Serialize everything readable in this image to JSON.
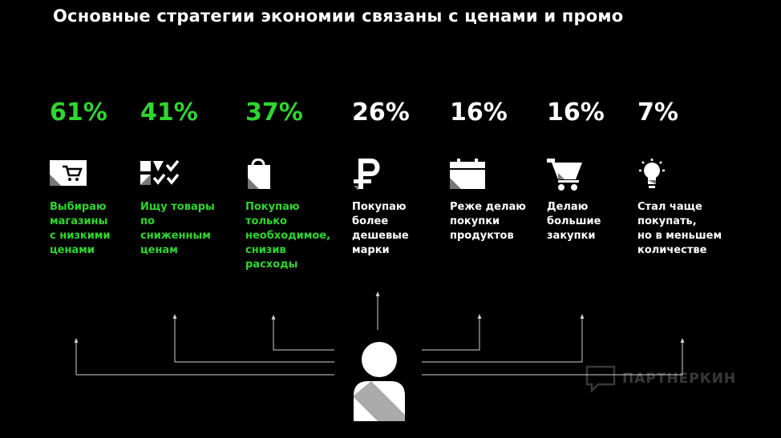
{
  "title": "Основные стратегии экономии связаны с ценами и промо",
  "accent_color": "#2fd62f",
  "items": [
    {
      "percent": "61%",
      "label": "Выбираю\nмагазины\nс низкими\nценами",
      "icon": "store-cart-icon",
      "highlight": true
    },
    {
      "percent": "41%",
      "label": "Ищу товары\nпо\nсниженным\nценам",
      "icon": "discount-grid-icon",
      "highlight": true
    },
    {
      "percent": "37%",
      "label": "Покупаю\nтолько\nнеобходимое,\nснизив\nрасходы",
      "icon": "shopping-bag-icon",
      "highlight": true
    },
    {
      "percent": "26%",
      "label": "Покупаю\nболее\nдешевые\nмарки",
      "icon": "ruble-icon",
      "highlight": false
    },
    {
      "percent": "16%",
      "label": "Реже делаю\nпокупки\nпродуктов",
      "icon": "calendar-icon",
      "highlight": false
    },
    {
      "percent": "16%",
      "label": "Делаю\nбольшие\nзакупки",
      "icon": "shopping-cart-icon",
      "highlight": false
    },
    {
      "percent": "7%",
      "label": "Стал чаще\nпокупать,\nно в меньшем\nколичестве",
      "icon": "lightbulb-icon",
      "highlight": false
    }
  ],
  "watermark": "ПАРТНЕРКИН"
}
